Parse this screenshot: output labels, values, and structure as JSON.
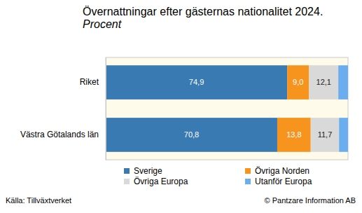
{
  "chart_data": {
    "type": "bar",
    "orientation": "horizontal",
    "stacked": true,
    "title": "Övernattningar efter gästernas nationalitet 2024.",
    "subtitle": "Procent",
    "categories": [
      "Riket",
      "Västra Götalands län"
    ],
    "series": [
      {
        "name": "Sverige",
        "color": "#3a7ab3",
        "values": [
          74.9,
          70.8
        ],
        "value_labels": [
          "74,9",
          "70,8"
        ]
      },
      {
        "name": "Övriga Norden",
        "color": "#f7941d",
        "values": [
          9.0,
          13.8
        ],
        "value_labels": [
          "9,0",
          "13,8"
        ]
      },
      {
        "name": "Övriga Europa",
        "color": "#d9d9d9",
        "values": [
          12.1,
          11.7
        ],
        "value_labels": [
          "12,1",
          "11,7"
        ]
      },
      {
        "name": "Utanför Europa",
        "color": "#6aaef0",
        "values": [
          4.0,
          3.7
        ]
      }
    ],
    "xlim": [
      0,
      100
    ],
    "tick_labels": "y",
    "data_labels": true,
    "legend": "bottom",
    "source": "Källa: Tillväxtverket",
    "credit": "© Pantzare Information AB"
  }
}
